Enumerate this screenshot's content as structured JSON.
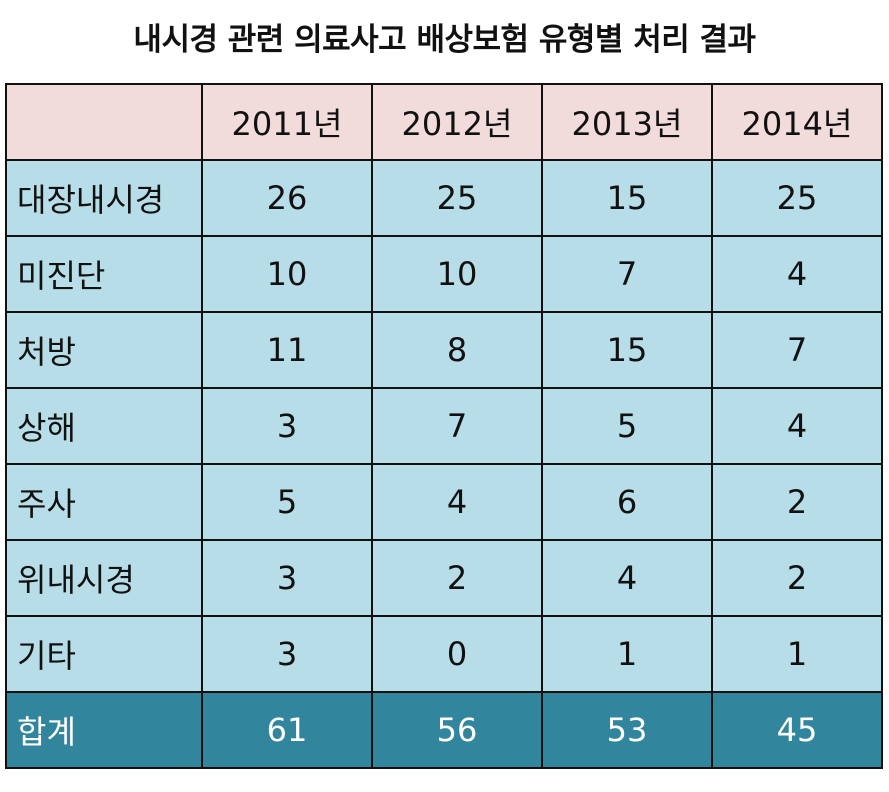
{
  "title": "내시경 관련 의료사고 배상보험 유형별 처리 결과",
  "table": {
    "corner": "",
    "columns": [
      "2011년",
      "2012년",
      "2013년",
      "2014년"
    ],
    "rows": [
      {
        "label": "대장내시경",
        "values": [
          "26",
          "25",
          "15",
          "25"
        ]
      },
      {
        "label": "미진단",
        "values": [
          "10",
          "10",
          "7",
          "4"
        ]
      },
      {
        "label": "처방",
        "values": [
          "11",
          "8",
          "15",
          "7"
        ]
      },
      {
        "label": "상해",
        "values": [
          "3",
          "7",
          "5",
          "4"
        ]
      },
      {
        "label": "주사",
        "values": [
          "5",
          "4",
          "6",
          "2"
        ]
      },
      {
        "label": "위내시경",
        "values": [
          "3",
          "2",
          "4",
          "2"
        ]
      },
      {
        "label": "기타",
        "values": [
          "3",
          "0",
          "1",
          "1"
        ]
      }
    ],
    "total": {
      "label": "합계",
      "values": [
        "61",
        "56",
        "53",
        "45"
      ]
    }
  },
  "colors": {
    "header_bg": "#f2dcdb",
    "body_bg": "#b7dee8",
    "total_bg": "#31859c",
    "total_text": "#ffffff",
    "border": "#111111"
  }
}
